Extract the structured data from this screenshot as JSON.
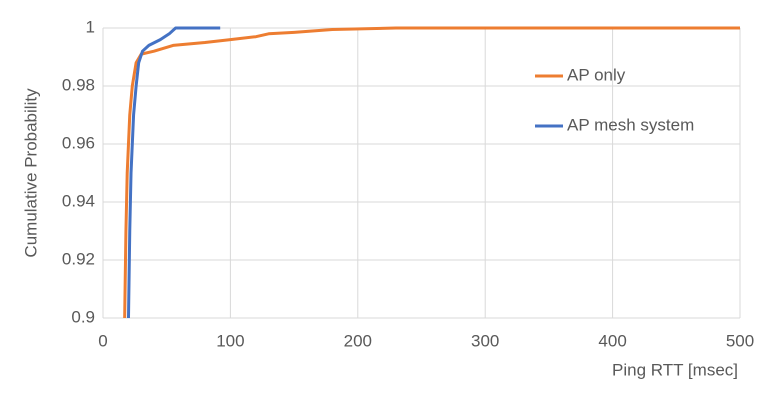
{
  "chart_data": {
    "type": "line",
    "x_label": "Ping RTT [msec]",
    "y_label": "Cumulative Probability",
    "xlim": [
      0,
      500
    ],
    "xticks": [
      0,
      100,
      200,
      300,
      400,
      500
    ],
    "ylim": [
      0.9,
      1
    ],
    "yticks": [
      0.9,
      0.92,
      0.94,
      0.96,
      0.98,
      1
    ],
    "grid": true,
    "legend": "right",
    "series": [
      {
        "name": "AP only",
        "color": "#ed7d31",
        "x": [
          17,
          18,
          19,
          20,
          21,
          23,
          26,
          30,
          40,
          55,
          80,
          100,
          120,
          130,
          150,
          180,
          230,
          500
        ],
        "values": [
          0.9,
          0.93,
          0.95,
          0.96,
          0.97,
          0.98,
          0.988,
          0.991,
          0.992,
          0.994,
          0.995,
          0.996,
          0.997,
          0.998,
          0.9985,
          0.9995,
          1,
          1
        ]
      },
      {
        "name": "AP mesh system",
        "color": "#4472c4",
        "x": [
          20,
          21,
          22,
          24,
          26,
          28,
          31,
          36,
          45,
          52,
          57,
          92
        ],
        "values": [
          0.9,
          0.93,
          0.95,
          0.97,
          0.98,
          0.988,
          0.992,
          0.994,
          0.996,
          0.998,
          1,
          1
        ]
      }
    ]
  }
}
